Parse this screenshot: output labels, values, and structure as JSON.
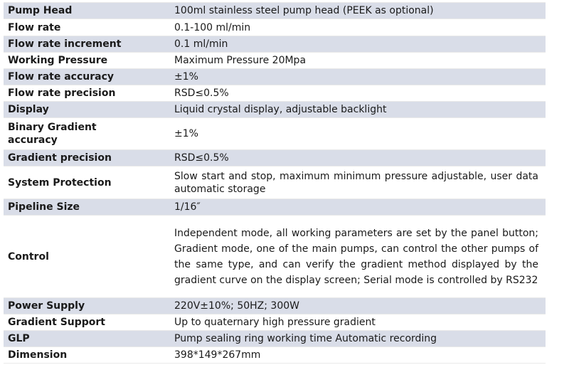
{
  "spec_table": {
    "rows": [
      {
        "label": "Pump Head",
        "value": "100ml stainless steel pump head (PEEK as optional)"
      },
      {
        "label": "Flow rate",
        "value": "0.1-100 ml/min"
      },
      {
        "label": "Flow rate increment",
        "value": "0.1 ml/min"
      },
      {
        "label": "Working Pressure",
        "value": "Maximum Pressure 20Mpa"
      },
      {
        "label": "Flow rate accuracy",
        "value": "±1%"
      },
      {
        "label": "Flow rate precision",
        "value": "RSD≤0.5%"
      },
      {
        "label": "Display",
        "value": "Liquid crystal display, adjustable backlight"
      },
      {
        "label": "Binary Gradient accuracy",
        "value": "±1%"
      },
      {
        "label": "Gradient precision",
        "value": "RSD≤0.5%"
      },
      {
        "label": "System Protection",
        "value": "Slow start and stop, maximum minimum pressure adjustable, user data automatic storage"
      },
      {
        "label": "Pipeline Size",
        "value": "1/16″"
      },
      {
        "label": "Control",
        "value": "Independent mode, all working parameters are set by the panel button; Gradient mode, one of the main pumps, can control the other pumps of the same type, and can verify the gradient method displayed by the gradient curve on the display screen; Serial mode is controlled by RS232"
      },
      {
        "label": "Power Supply",
        "value": "220V±10%; 50HZ; 300W"
      },
      {
        "label": "Gradient Support",
        "value": "Up to quaternary high pressure gradient"
      },
      {
        "label": "GLP",
        "value": "Pump sealing ring working time Automatic recording"
      },
      {
        "label": "Dimension",
        "value": "398*149*267mm"
      }
    ]
  },
  "colors": {
    "row_shade": "#d9dde8",
    "row_plain": "#ffffff",
    "text": "#1a1a1a"
  }
}
